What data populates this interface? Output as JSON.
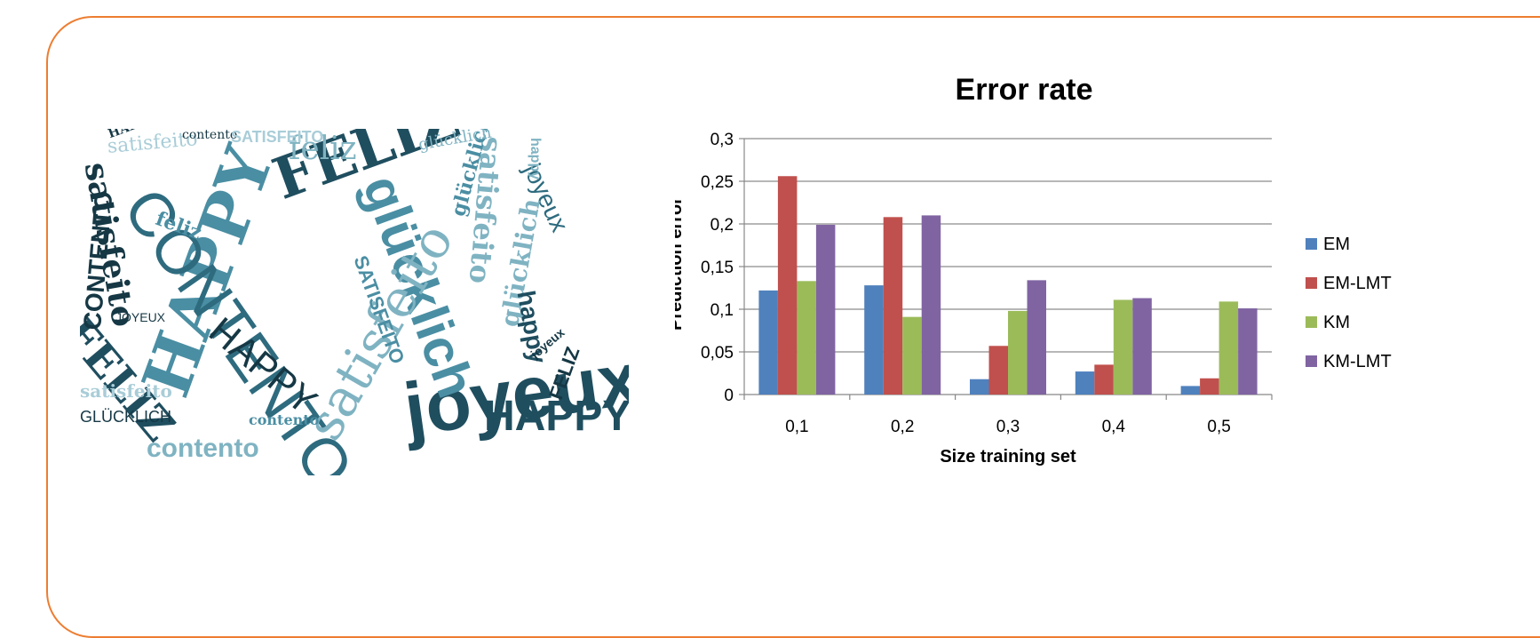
{
  "palette": {
    "frame": "#ed7d31",
    "cloud": [
      "#1f4e5f",
      "#2e6b7f",
      "#4a8ea3",
      "#7fb3c2",
      "#a9cdd8",
      "#163845"
    ]
  },
  "word_cloud": {
    "words": [
      {
        "t": "joyeux",
        "x": 360,
        "y": 275,
        "s": 84,
        "r": -8,
        "c": 0
      },
      {
        "t": "HAPPY",
        "x": 60,
        "y": 285,
        "s": 74,
        "r": -70,
        "c": 2
      },
      {
        "t": "CONTENTO",
        "x": 95,
        "y": 55,
        "s": 70,
        "r": 55,
        "c": 1
      },
      {
        "t": "FELIZ",
        "x": 210,
        "y": 30,
        "s": 64,
        "r": -20,
        "c": 0
      },
      {
        "t": "glücklich",
        "x": 365,
        "y": 45,
        "s": 60,
        "r": 70,
        "c": 2
      },
      {
        "t": "satisfeito",
        "x": 245,
        "y": 330,
        "s": 58,
        "r": -60,
        "c": 3
      },
      {
        "t": "HAPPY",
        "x": 455,
        "y": 300,
        "s": 48,
        "r": 0,
        "c": 0
      },
      {
        "t": "FELIZ",
        "x": 10,
        "y": 205,
        "s": 48,
        "r": 50,
        "c": 0
      },
      {
        "t": "HAPPY",
        "x": 165,
        "y": 205,
        "s": 42,
        "r": 40,
        "c": 5
      },
      {
        "t": "satisfeito",
        "x": 35,
        "y": 35,
        "s": 36,
        "r": 80,
        "c": 5
      },
      {
        "t": "CONTENTO",
        "x": 0,
        "y": 225,
        "s": 28,
        "r": -85,
        "c": 5
      },
      {
        "t": "feliz",
        "x": 235,
        "y": 5,
        "s": 36,
        "r": 0,
        "c": 3
      },
      {
        "t": "contento",
        "x": 75,
        "y": 345,
        "s": 30,
        "r": 0,
        "c": 3
      },
      {
        "t": "satisfeito",
        "x": 480,
        "y": 10,
        "s": 32,
        "r": 95,
        "c": 3
      },
      {
        "t": "joyeux",
        "x": 520,
        "y": 35,
        "s": 28,
        "r": 65,
        "c": 1
      },
      {
        "t": "glücklich",
        "x": 470,
        "y": 220,
        "s": 28,
        "r": -80,
        "c": 3
      },
      {
        "t": "SATISFEITO",
        "x": 325,
        "y": 140,
        "s": 22,
        "r": 70,
        "c": 2
      },
      {
        "t": "satisfeito",
        "x": 30,
        "y": 10,
        "s": 22,
        "r": -5,
        "c": 4
      },
      {
        "t": "happy",
        "x": 515,
        "y": 180,
        "s": 28,
        "r": 80,
        "c": 0
      },
      {
        "t": "glücklich",
        "x": 415,
        "y": 95,
        "s": 22,
        "r": -75,
        "c": 2
      },
      {
        "t": "GLÜCKLICH",
        "x": 0,
        "y": 315,
        "s": 18,
        "r": 0,
        "c": 5
      },
      {
        "t": "satisfeito",
        "x": 0,
        "y": 285,
        "s": 20,
        "r": 0,
        "c": 4
      },
      {
        "t": "FELIZ",
        "x": 525,
        "y": 300,
        "s": 22,
        "r": -70,
        "c": 5
      },
      {
        "t": "contento",
        "x": 115,
        "y": 0,
        "s": 14,
        "r": 0,
        "c": 5
      },
      {
        "t": "SATISFEITO",
        "x": 170,
        "y": 0,
        "s": 18,
        "r": 0,
        "c": 4
      },
      {
        "t": "feliz",
        "x": 90,
        "y": 90,
        "s": 22,
        "r": 20,
        "c": 2
      },
      {
        "t": "JOYEUX",
        "x": 40,
        "y": 205,
        "s": 14,
        "r": 0,
        "c": 5
      },
      {
        "t": "contento",
        "x": 190,
        "y": 320,
        "s": 16,
        "r": 0,
        "c": 2
      },
      {
        "t": "happy",
        "x": 520,
        "y": 10,
        "s": 16,
        "r": 90,
        "c": 3
      },
      {
        "t": "glücklich",
        "x": 380,
        "y": 10,
        "s": 18,
        "r": -10,
        "c": 3
      },
      {
        "t": "joyeux",
        "x": 505,
        "y": 250,
        "s": 14,
        "r": -40,
        "c": 5
      },
      {
        "t": "HAPPY",
        "x": 30,
        "y": 0,
        "s": 14,
        "r": -20,
        "c": 5
      }
    ]
  },
  "chart_data": {
    "type": "bar",
    "title": "Error rate",
    "xlabel": "Size training set",
    "ylabel": "Prediction error",
    "categories": [
      "0,1",
      "0,2",
      "0,3",
      "0,4",
      "0,5"
    ],
    "ylim": [
      0,
      0.3
    ],
    "yticks": [
      0,
      0.05,
      0.1,
      0.15,
      0.2,
      0.25,
      0.3
    ],
    "ytick_labels": [
      "0",
      "0,05",
      "0,1",
      "0,15",
      "0,2",
      "0,25",
      "0,3"
    ],
    "grid": true,
    "legend": "right",
    "series": [
      {
        "name": "EM",
        "color": "#4f81bd",
        "values": [
          0.122,
          0.128,
          0.018,
          0.027,
          0.01
        ]
      },
      {
        "name": "EM-LMT",
        "color": "#c0504d",
        "values": [
          0.256,
          0.208,
          0.057,
          0.035,
          0.019
        ]
      },
      {
        "name": "KM",
        "color": "#9bbb59",
        "values": [
          0.133,
          0.091,
          0.098,
          0.111,
          0.109
        ]
      },
      {
        "name": "KM-LMT",
        "color": "#8064a2",
        "values": [
          0.199,
          0.21,
          0.134,
          0.113,
          0.101
        ]
      }
    ]
  }
}
